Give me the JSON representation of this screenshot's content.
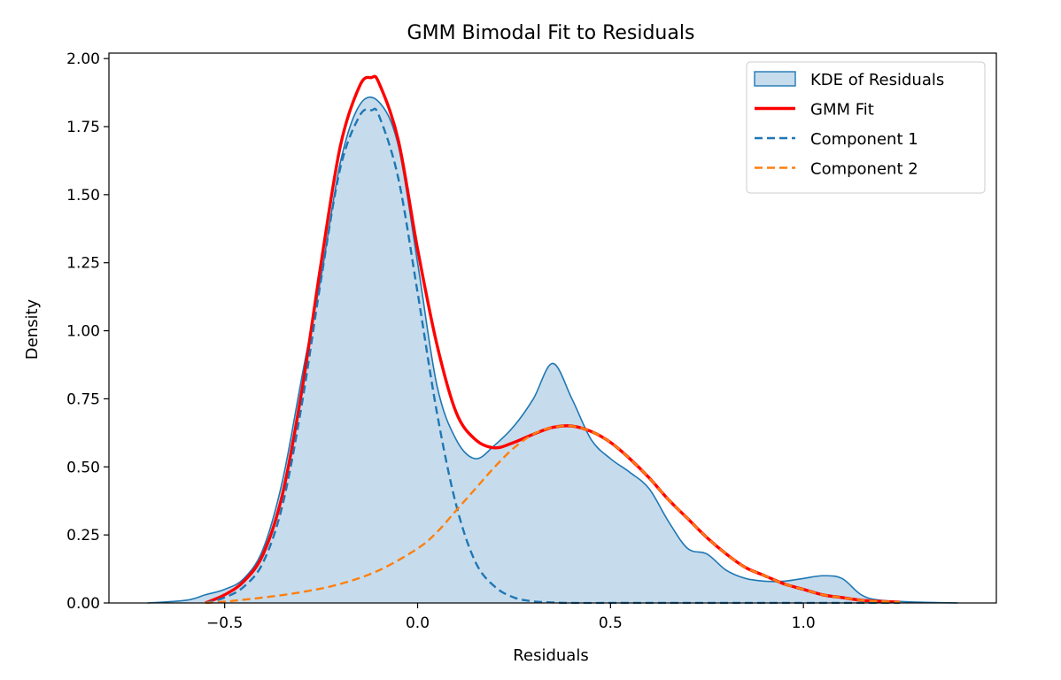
{
  "chart_data": {
    "type": "line",
    "title": "GMM Bimodal Fit to Residuals",
    "xlabel": "Residuals",
    "ylabel": "Density",
    "xlim": [
      -0.8,
      1.5
    ],
    "ylim": [
      0,
      2.02
    ],
    "xticks": [
      -0.5,
      0.0,
      0.5,
      1.0
    ],
    "xtick_labels": [
      "−0.5",
      "0.0",
      "0.5",
      "1.0"
    ],
    "yticks": [
      0,
      0.25,
      0.5,
      0.75,
      1.0,
      1.25,
      1.5,
      1.75,
      2.0
    ],
    "ytick_labels": [
      "0.00",
      "0.25",
      "0.50",
      "0.75",
      "1.00",
      "1.25",
      "1.50",
      "1.75",
      "2.00"
    ],
    "grid": false,
    "legend_position": "top-right",
    "series": [
      {
        "name": "KDE of Residuals",
        "style": "filled-area",
        "color": "#1f77b4",
        "fill": "#c6dcec",
        "x": [
          -0.7,
          -0.6,
          -0.55,
          -0.5,
          -0.45,
          -0.4,
          -0.35,
          -0.3,
          -0.25,
          -0.2,
          -0.15,
          -0.1,
          -0.05,
          0.0,
          0.05,
          0.1,
          0.15,
          0.2,
          0.25,
          0.3,
          0.35,
          0.4,
          0.45,
          0.5,
          0.55,
          0.6,
          0.65,
          0.7,
          0.75,
          0.8,
          0.85,
          0.9,
          0.95,
          1.0,
          1.05,
          1.1,
          1.15,
          1.2,
          1.3,
          1.4
        ],
        "y": [
          0.0,
          0.01,
          0.03,
          0.05,
          0.09,
          0.2,
          0.45,
          0.83,
          1.2,
          1.62,
          1.83,
          1.84,
          1.68,
          1.25,
          0.8,
          0.6,
          0.53,
          0.58,
          0.65,
          0.75,
          0.88,
          0.75,
          0.6,
          0.53,
          0.48,
          0.42,
          0.3,
          0.2,
          0.18,
          0.12,
          0.09,
          0.08,
          0.08,
          0.09,
          0.1,
          0.09,
          0.03,
          0.01,
          0.003,
          0.0
        ]
      },
      {
        "name": "GMM Fit",
        "style": "solid",
        "color": "#ff0000",
        "x": [
          -0.55,
          -0.5,
          -0.45,
          -0.4,
          -0.35,
          -0.3,
          -0.25,
          -0.2,
          -0.15,
          -0.12,
          -0.1,
          -0.05,
          0.0,
          0.05,
          0.1,
          0.15,
          0.2,
          0.25,
          0.3,
          0.35,
          0.4,
          0.45,
          0.5,
          0.55,
          0.6,
          0.65,
          0.7,
          0.75,
          0.8,
          0.85,
          0.9,
          0.95,
          1.0,
          1.05,
          1.1,
          1.15,
          1.2,
          1.25
        ],
        "y": [
          0.0,
          0.03,
          0.08,
          0.18,
          0.4,
          0.78,
          1.25,
          1.68,
          1.9,
          1.93,
          1.91,
          1.7,
          1.3,
          0.95,
          0.7,
          0.6,
          0.57,
          0.59,
          0.62,
          0.645,
          0.65,
          0.63,
          0.59,
          0.53,
          0.46,
          0.38,
          0.31,
          0.24,
          0.18,
          0.13,
          0.1,
          0.07,
          0.05,
          0.03,
          0.02,
          0.01,
          0.006,
          0.003
        ]
      },
      {
        "name": "Component 1",
        "style": "dashed",
        "color": "#1f77b4",
        "x": [
          -0.55,
          -0.5,
          -0.45,
          -0.4,
          -0.35,
          -0.3,
          -0.25,
          -0.2,
          -0.15,
          -0.12,
          -0.1,
          -0.05,
          0.0,
          0.05,
          0.1,
          0.15,
          0.2,
          0.25,
          0.3,
          0.35,
          0.4,
          0.5,
          0.6,
          0.8,
          1.0,
          1.25
        ],
        "y": [
          0.0,
          0.02,
          0.06,
          0.15,
          0.36,
          0.73,
          1.19,
          1.6,
          1.79,
          1.81,
          1.79,
          1.56,
          1.14,
          0.7,
          0.36,
          0.15,
          0.06,
          0.02,
          0.006,
          0.002,
          0.0,
          0.0,
          0.0,
          0.0,
          0.0,
          0.0
        ]
      },
      {
        "name": "Component 2",
        "style": "dashed",
        "color": "#ff7f0e",
        "x": [
          -0.55,
          -0.5,
          -0.4,
          -0.3,
          -0.2,
          -0.1,
          0.0,
          0.05,
          0.1,
          0.15,
          0.2,
          0.25,
          0.3,
          0.35,
          0.4,
          0.45,
          0.5,
          0.55,
          0.6,
          0.65,
          0.7,
          0.75,
          0.8,
          0.85,
          0.9,
          0.95,
          1.0,
          1.05,
          1.1,
          1.15,
          1.2,
          1.25
        ],
        "y": [
          0.0,
          0.005,
          0.02,
          0.04,
          0.07,
          0.12,
          0.2,
          0.26,
          0.34,
          0.42,
          0.5,
          0.57,
          0.62,
          0.645,
          0.65,
          0.63,
          0.59,
          0.53,
          0.46,
          0.38,
          0.31,
          0.24,
          0.18,
          0.13,
          0.1,
          0.07,
          0.05,
          0.03,
          0.02,
          0.01,
          0.006,
          0.003
        ]
      }
    ]
  }
}
